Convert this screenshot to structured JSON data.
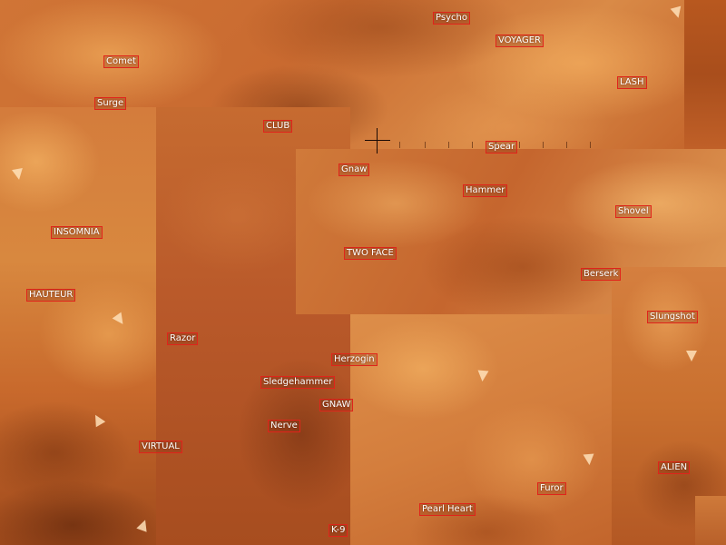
{
  "map": {
    "labels": [
      "Psycho",
      "VOYAGER",
      "Comet",
      "LASH",
      "Surge",
      "CLUB",
      "Spear",
      "Gnaw",
      "Hammer",
      "Shovel",
      "INSOMNIA",
      "TWO FACE",
      "Berserk",
      "HAUTEUR",
      "Slungshot",
      "Razor",
      "Herzogin",
      "Sledgehammer",
      "GNAW",
      "Nerve",
      "VIRTUAL",
      "ALIEN",
      "Furor",
      "Pearl Heart",
      "K-9"
    ]
  },
  "colors": {
    "label_border": "#e0241b",
    "label_text": "#ffffff",
    "terrain_base": "#c2632a"
  }
}
